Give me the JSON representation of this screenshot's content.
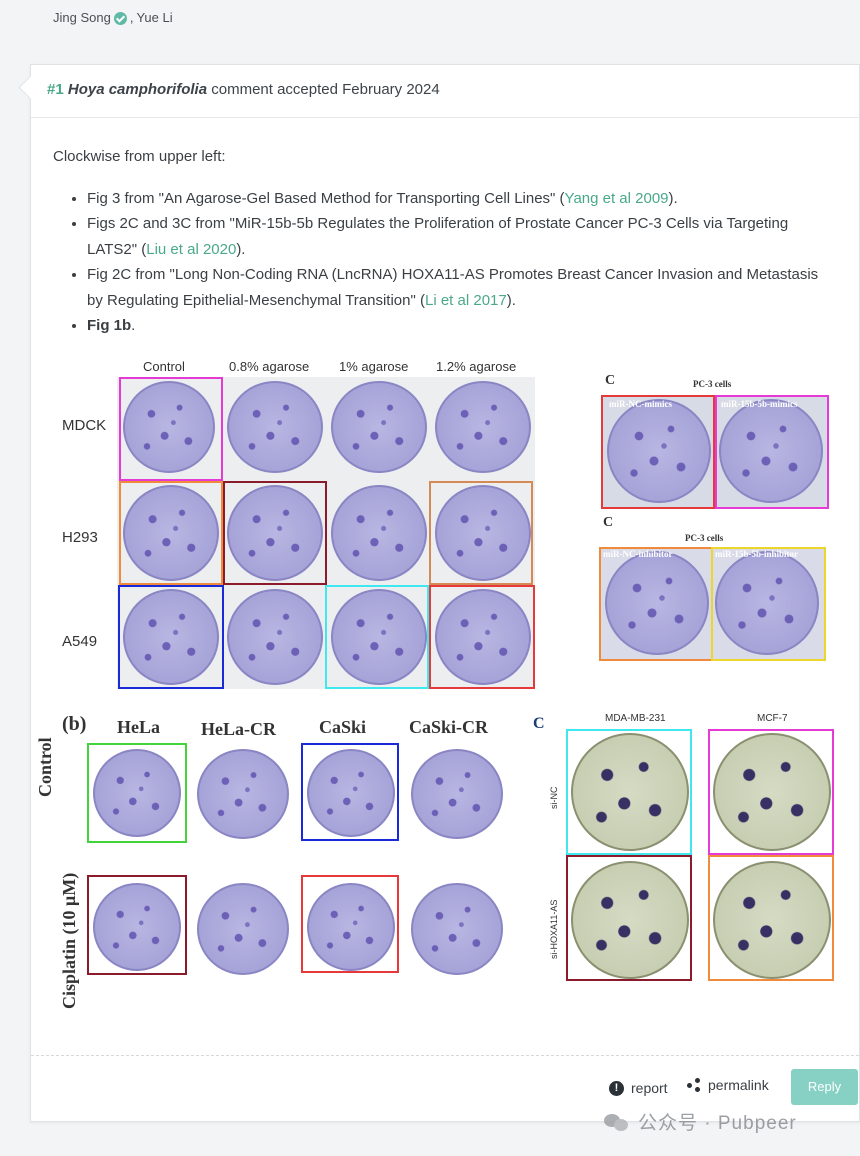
{
  "authors": {
    "first": "Jing Song",
    "second": "Yue Li"
  },
  "comment": {
    "number": "#1",
    "author": "Hoya camphorifolia",
    "status": "comment accepted February 2024",
    "intro": "Clockwise from upper left:",
    "items": [
      {
        "pre": "Fig 3 from \"An Agarose-Gel Based Method for Transporting Cell Lines\" (",
        "link": "Yang et al 2009",
        "post": ")."
      },
      {
        "pre": "Figs 2C and 3C from \"MiR-15b-5b Regulates the Proliferation of Prostate Cancer PC-3 Cells via Targeting LATS2\" (",
        "link": "Liu et al 2020",
        "post": ")."
      },
      {
        "pre": "Fig 2C from \"Long Non-Coding RNA (LncRNA) HOXA11-AS Promotes Breast Cancer Invasion and Metastasis by Regulating Epithelial-Mesenchymal Transition\" (",
        "link": "Li et al 2017",
        "post": ")."
      },
      {
        "bold": "Fig 1b",
        "post": "."
      }
    ]
  },
  "figure": {
    "a": {
      "cols": [
        "Control",
        "0.8% agarose",
        "1% agarose",
        "1.2% agarose"
      ],
      "rows": [
        "MDCK",
        "H293",
        "A549"
      ]
    },
    "c1": {
      "letter": "C",
      "title": "PC-3 cells",
      "left": "miR-NC-mimics",
      "right": "miR-15b-5b-mimics"
    },
    "c2": {
      "letter": "C",
      "title": "PC-3 cells",
      "left": "miR-NC-inhibitor",
      "right": "miR-15b-5b-inhibitor"
    },
    "b": {
      "letter": "(b)",
      "cols": [
        "HeLa",
        "HeLa-CR",
        "CaSki",
        "CaSki-CR"
      ],
      "rows": [
        "Control",
        "Cisplatin (10 μM)"
      ]
    },
    "c3": {
      "letter": "C",
      "cols": [
        "MDA-MB-231",
        "MCF-7"
      ],
      "rows": [
        "si-NC",
        "si-HOXA11-AS"
      ]
    }
  },
  "footer": {
    "report": "report",
    "permalink": "permalink",
    "reply": "Reply"
  },
  "watermark": "公众号 · Pubpeer"
}
